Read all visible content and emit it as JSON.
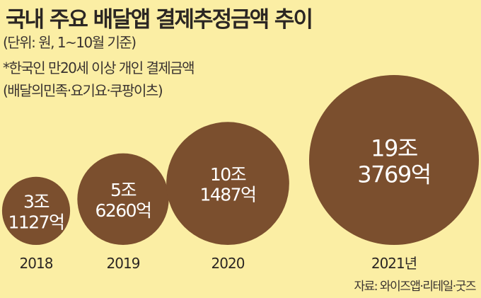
{
  "header": {
    "title": "국내 주요 배달앱 결제추정금액 추이",
    "unit_note": "(단위: 원, 1~10월 기준)",
    "scope_note": "*한국인 만20세 이상 개인 결제금액",
    "apps_note": "(배달의민족·요기요·쿠팡이츠)"
  },
  "source": "자료: 와이즈앱·리테일·굿즈",
  "colors": {
    "background": "#fbeea4",
    "bubble": "#7b4f2e",
    "bubble_text": "#ffffff"
  },
  "chart_data": {
    "type": "bubble",
    "unit": "원",
    "points": [
      {
        "year": "2018",
        "value_krw": 3112700000000,
        "label_top": "3조",
        "label_bottom": "1127억"
      },
      {
        "year": "2019",
        "value_krw": 5626000000000,
        "label_top": "5조",
        "label_bottom": "6260억"
      },
      {
        "year": "2020",
        "value_krw": 10148700000000,
        "label_top": "10조",
        "label_bottom": "1487억"
      },
      {
        "year": "2021년",
        "value_krw": 19376900000000,
        "label_top": "19조",
        "label_bottom": "3769억"
      }
    ]
  }
}
